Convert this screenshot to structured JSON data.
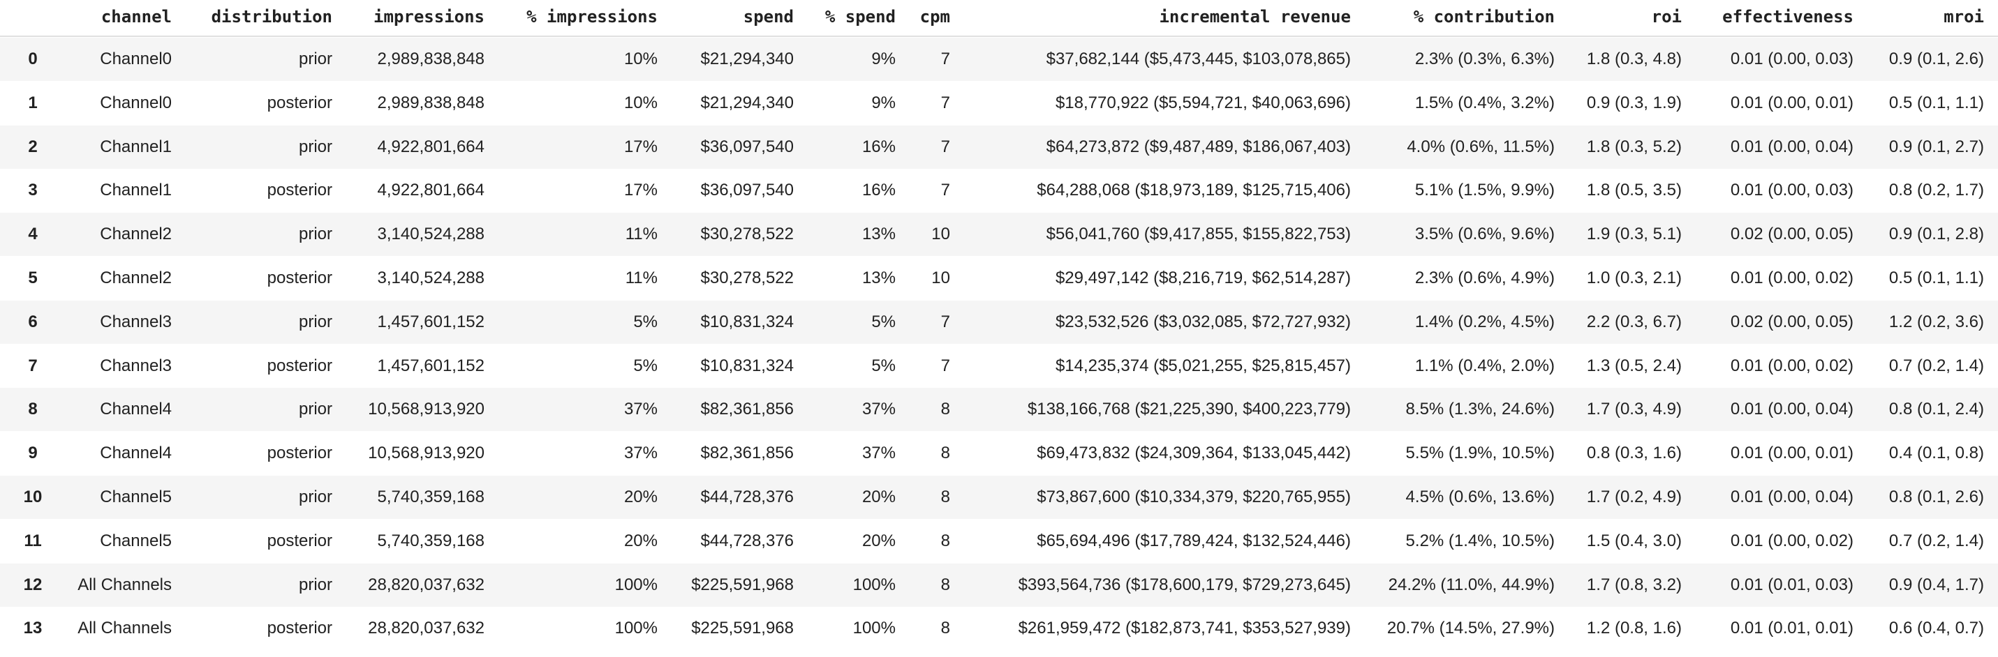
{
  "table": {
    "columns": [
      "channel",
      "distribution",
      "impressions",
      "% impressions",
      "spend",
      "% spend",
      "cpm",
      "incremental revenue",
      "% contribution",
      "roi",
      "effectiveness",
      "mroi"
    ],
    "rows": [
      [
        "0",
        "Channel0",
        "prior",
        "2,989,838,848",
        "10%",
        "$21,294,340",
        "9%",
        "7",
        "$37,682,144 ($5,473,445, $103,078,865)",
        "2.3% (0.3%, 6.3%)",
        "1.8 (0.3, 4.8)",
        "0.01 (0.00, 0.03)",
        "0.9 (0.1, 2.6)"
      ],
      [
        "1",
        "Channel0",
        "posterior",
        "2,989,838,848",
        "10%",
        "$21,294,340",
        "9%",
        "7",
        "$18,770,922 ($5,594,721, $40,063,696)",
        "1.5% (0.4%, 3.2%)",
        "0.9 (0.3, 1.9)",
        "0.01 (0.00, 0.01)",
        "0.5 (0.1, 1.1)"
      ],
      [
        "2",
        "Channel1",
        "prior",
        "4,922,801,664",
        "17%",
        "$36,097,540",
        "16%",
        "7",
        "$64,273,872 ($9,487,489, $186,067,403)",
        "4.0% (0.6%, 11.5%)",
        "1.8 (0.3, 5.2)",
        "0.01 (0.00, 0.04)",
        "0.9 (0.1, 2.7)"
      ],
      [
        "3",
        "Channel1",
        "posterior",
        "4,922,801,664",
        "17%",
        "$36,097,540",
        "16%",
        "7",
        "$64,288,068 ($18,973,189, $125,715,406)",
        "5.1% (1.5%, 9.9%)",
        "1.8 (0.5, 3.5)",
        "0.01 (0.00, 0.03)",
        "0.8 (0.2, 1.7)"
      ],
      [
        "4",
        "Channel2",
        "prior",
        "3,140,524,288",
        "11%",
        "$30,278,522",
        "13%",
        "10",
        "$56,041,760 ($9,417,855, $155,822,753)",
        "3.5% (0.6%, 9.6%)",
        "1.9 (0.3, 5.1)",
        "0.02 (0.00, 0.05)",
        "0.9 (0.1, 2.8)"
      ],
      [
        "5",
        "Channel2",
        "posterior",
        "3,140,524,288",
        "11%",
        "$30,278,522",
        "13%",
        "10",
        "$29,497,142 ($8,216,719, $62,514,287)",
        "2.3% (0.6%, 4.9%)",
        "1.0 (0.3, 2.1)",
        "0.01 (0.00, 0.02)",
        "0.5 (0.1, 1.1)"
      ],
      [
        "6",
        "Channel3",
        "prior",
        "1,457,601,152",
        "5%",
        "$10,831,324",
        "5%",
        "7",
        "$23,532,526 ($3,032,085, $72,727,932)",
        "1.4% (0.2%, 4.5%)",
        "2.2 (0.3, 6.7)",
        "0.02 (0.00, 0.05)",
        "1.2 (0.2, 3.6)"
      ],
      [
        "7",
        "Channel3",
        "posterior",
        "1,457,601,152",
        "5%",
        "$10,831,324",
        "5%",
        "7",
        "$14,235,374 ($5,021,255, $25,815,457)",
        "1.1% (0.4%, 2.0%)",
        "1.3 (0.5, 2.4)",
        "0.01 (0.00, 0.02)",
        "0.7 (0.2, 1.4)"
      ],
      [
        "8",
        "Channel4",
        "prior",
        "10,568,913,920",
        "37%",
        "$82,361,856",
        "37%",
        "8",
        "$138,166,768 ($21,225,390, $400,223,779)",
        "8.5% (1.3%, 24.6%)",
        "1.7 (0.3, 4.9)",
        "0.01 (0.00, 0.04)",
        "0.8 (0.1, 2.4)"
      ],
      [
        "9",
        "Channel4",
        "posterior",
        "10,568,913,920",
        "37%",
        "$82,361,856",
        "37%",
        "8",
        "$69,473,832 ($24,309,364, $133,045,442)",
        "5.5% (1.9%, 10.5%)",
        "0.8 (0.3, 1.6)",
        "0.01 (0.00, 0.01)",
        "0.4 (0.1, 0.8)"
      ],
      [
        "10",
        "Channel5",
        "prior",
        "5,740,359,168",
        "20%",
        "$44,728,376",
        "20%",
        "8",
        "$73,867,600 ($10,334,379, $220,765,955)",
        "4.5% (0.6%, 13.6%)",
        "1.7 (0.2, 4.9)",
        "0.01 (0.00, 0.04)",
        "0.8 (0.1, 2.6)"
      ],
      [
        "11",
        "Channel5",
        "posterior",
        "5,740,359,168",
        "20%",
        "$44,728,376",
        "20%",
        "8",
        "$65,694,496 ($17,789,424, $132,524,446)",
        "5.2% (1.4%, 10.5%)",
        "1.5 (0.4, 3.0)",
        "0.01 (0.00, 0.02)",
        "0.7 (0.2, 1.4)"
      ],
      [
        "12",
        "All Channels",
        "prior",
        "28,820,037,632",
        "100%",
        "$225,591,968",
        "100%",
        "8",
        "$393,564,736 ($178,600,179, $729,273,645)",
        "24.2% (11.0%, 44.9%)",
        "1.7 (0.8, 3.2)",
        "0.01 (0.01, 0.03)",
        "0.9 (0.4, 1.7)"
      ],
      [
        "13",
        "All Channels",
        "posterior",
        "28,820,037,632",
        "100%",
        "$225,591,968",
        "100%",
        "8",
        "$261,959,472 ($182,873,741, $353,527,939)",
        "20.7% (14.5%, 27.9%)",
        "1.2 (0.8, 1.6)",
        "0.01 (0.01, 0.01)",
        "0.6 (0.4, 0.7)"
      ]
    ]
  }
}
